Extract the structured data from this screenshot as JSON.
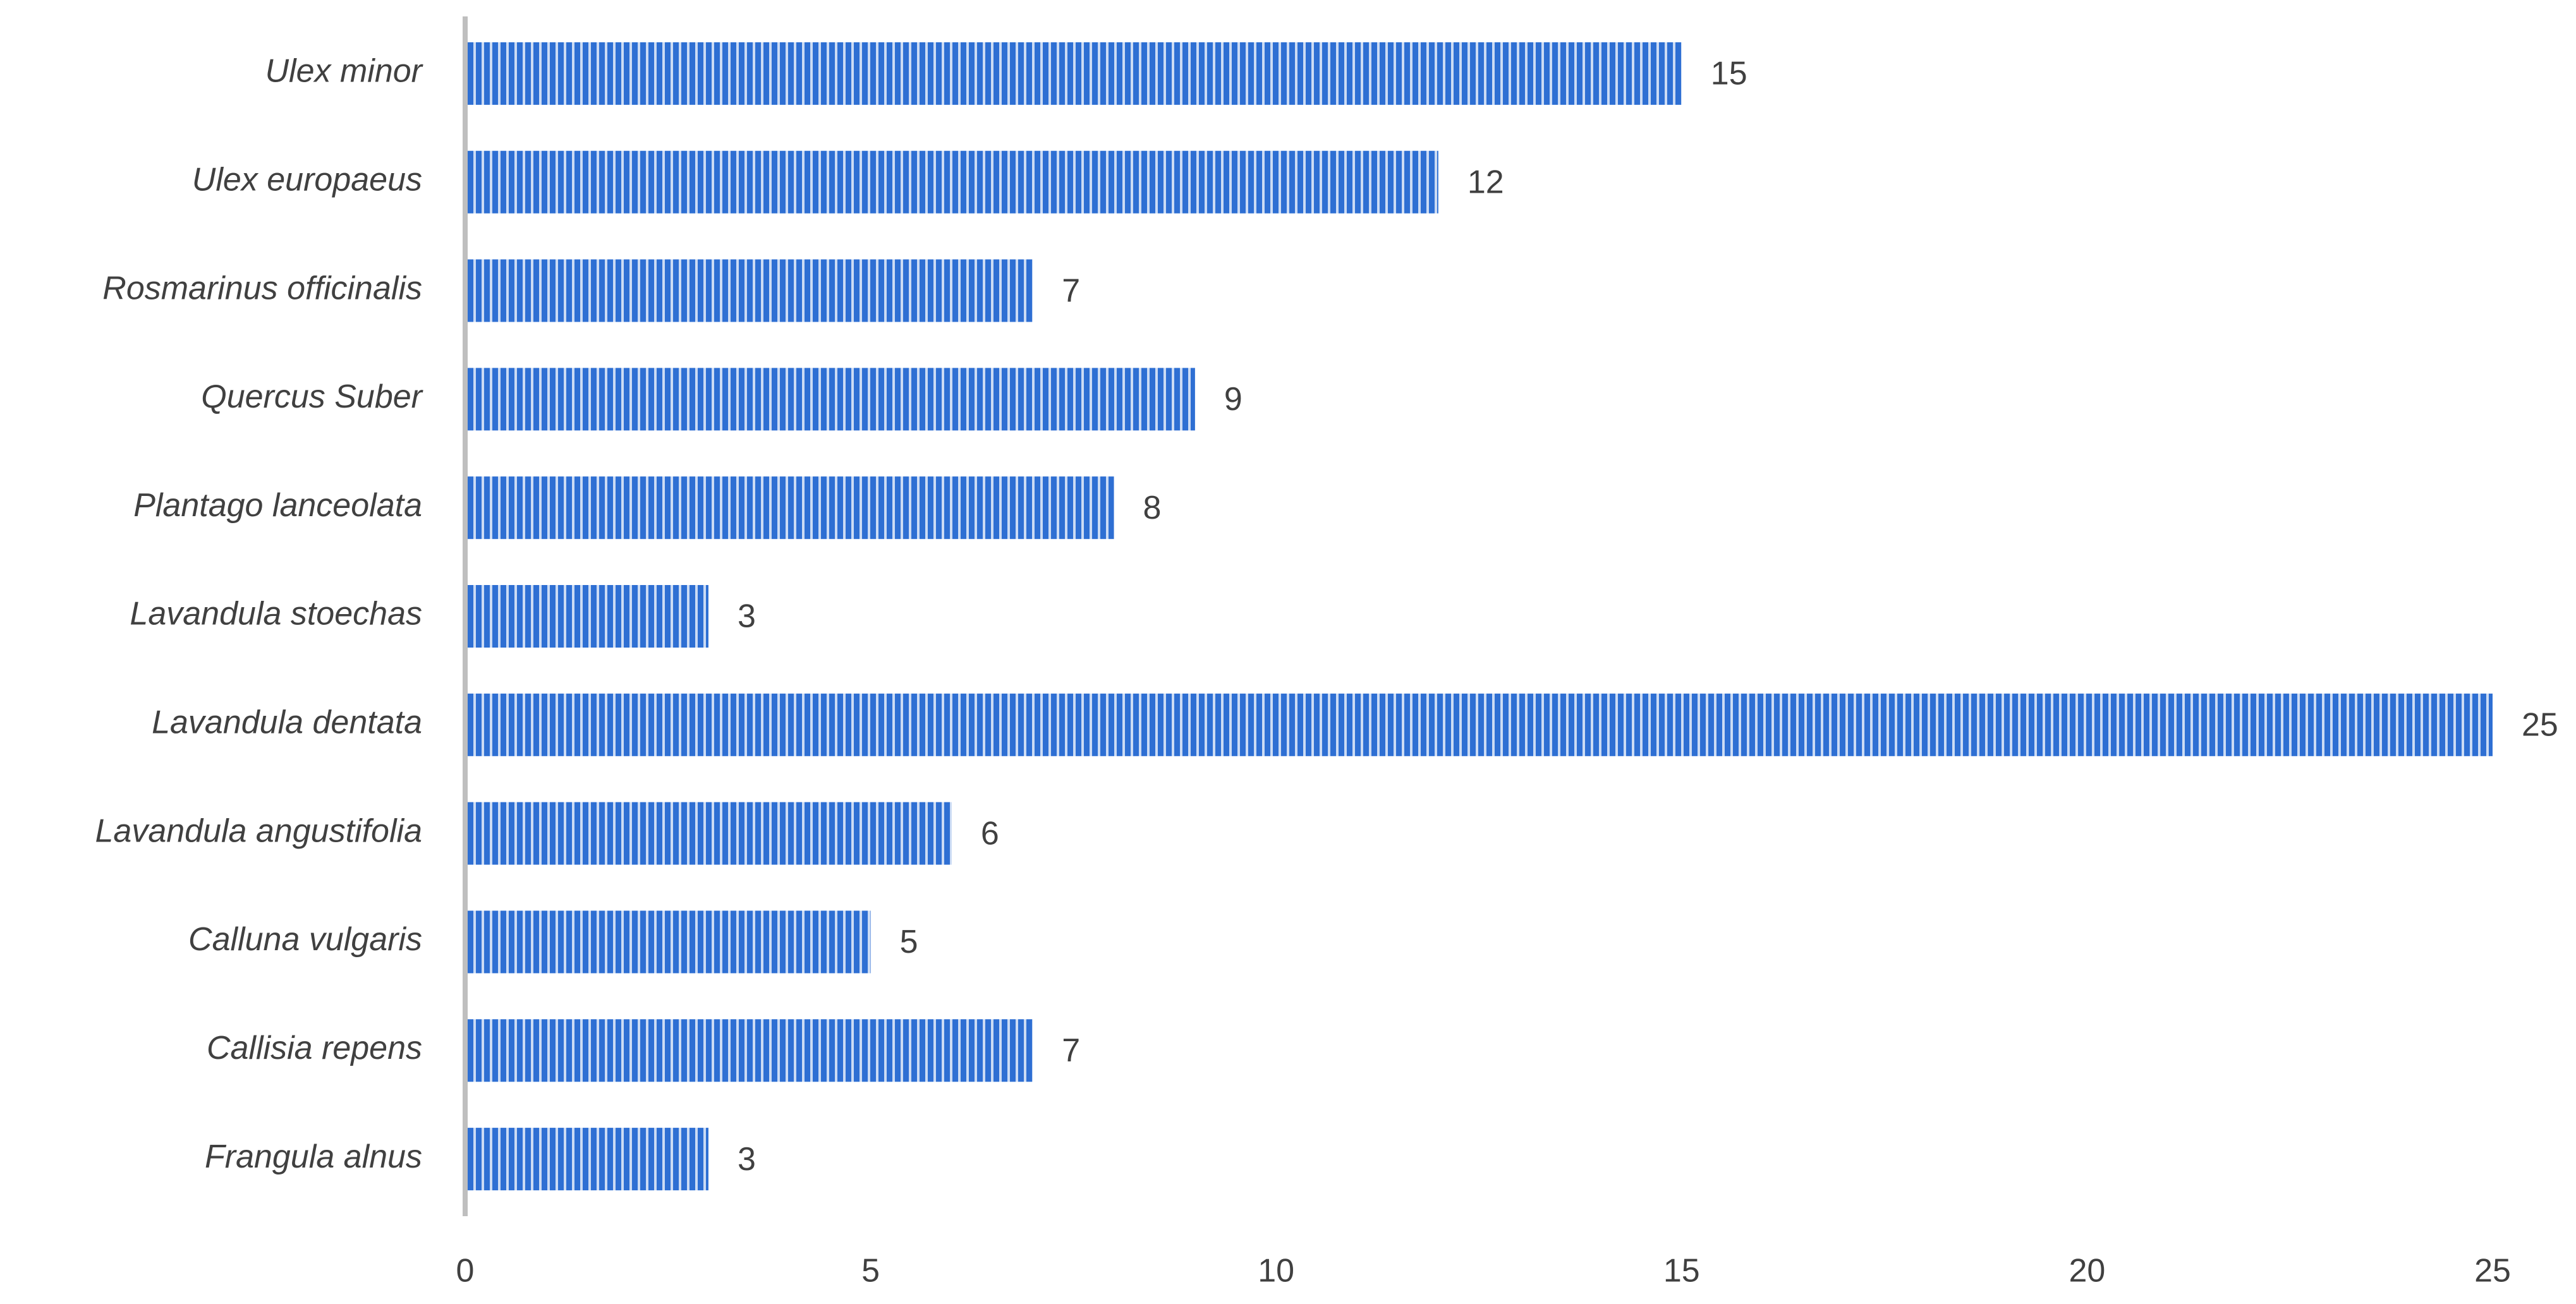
{
  "chart_data": {
    "type": "bar",
    "orientation": "horizontal",
    "categories": [
      "Ulex minor",
      "Ulex europaeus",
      "Rosmarinus officinalis",
      "Quercus Suber",
      "Plantago lanceolata",
      "Lavandula stoechas",
      "Lavandula dentata",
      "Lavandula angustifolia",
      "Calluna vulgaris",
      "Callisia repens",
      "Frangula alnus"
    ],
    "values": [
      15,
      12,
      7,
      9,
      8,
      3,
      25,
      6,
      5,
      7,
      3
    ],
    "color": "#2e6fd3",
    "xlim": [
      0,
      25
    ],
    "xticks": [
      0,
      5,
      10,
      15,
      20,
      25
    ],
    "grid": false
  }
}
